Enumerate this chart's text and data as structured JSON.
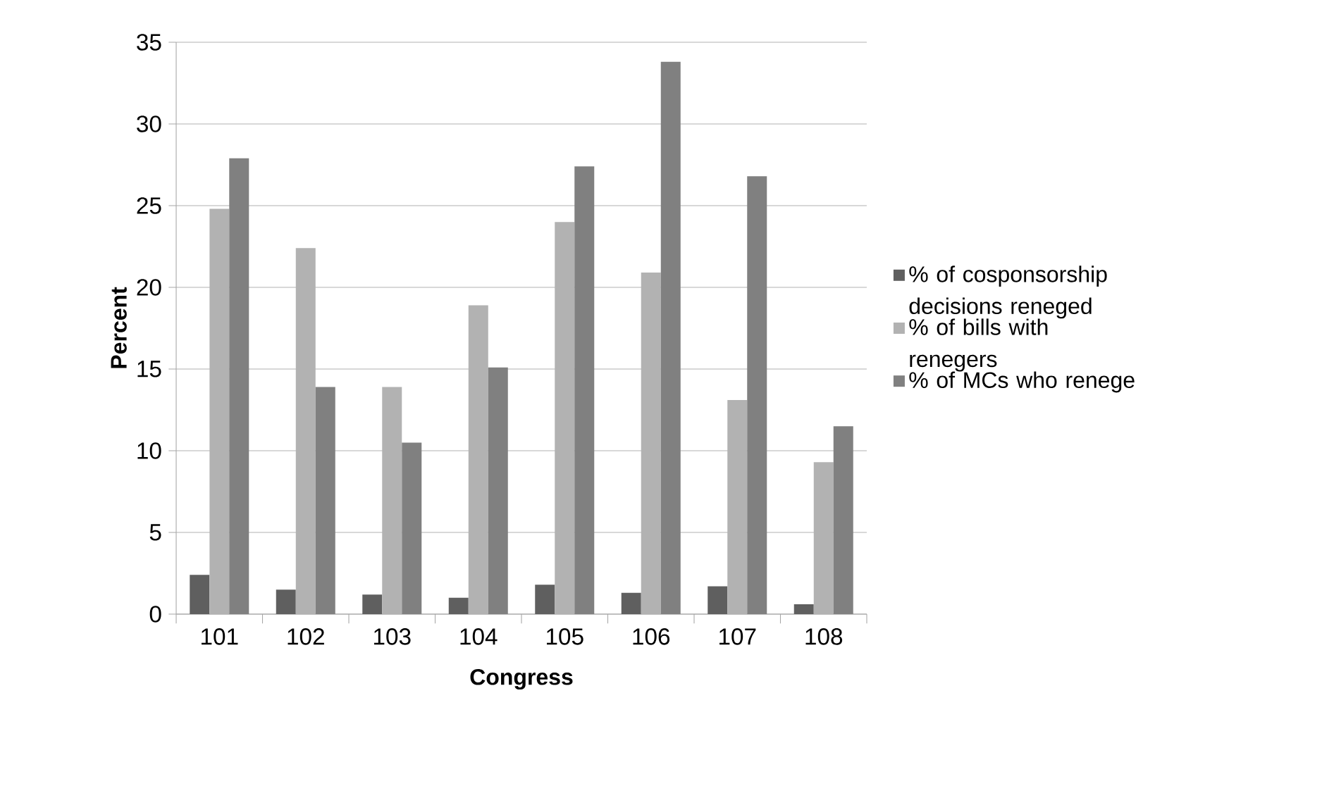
{
  "chart_data": {
    "type": "bar",
    "xlabel": "Congress",
    "ylabel": "Percent",
    "categories": [
      "101",
      "102",
      "103",
      "104",
      "105",
      "106",
      "107",
      "108"
    ],
    "series": [
      {
        "name": "% of cosponsorship decisions reneged",
        "color": "#5f5f5f",
        "values": [
          2.4,
          1.5,
          1.2,
          1.0,
          1.8,
          1.3,
          1.7,
          0.6
        ]
      },
      {
        "name": "% of bills with renegers",
        "color": "#b2b2b2",
        "values": [
          24.8,
          22.4,
          13.9,
          18.9,
          24.0,
          20.9,
          13.1,
          9.3
        ]
      },
      {
        "name": "% of MCs who renege",
        "color": "#808080",
        "values": [
          27.9,
          13.9,
          10.5,
          15.1,
          27.4,
          33.8,
          26.8,
          11.5
        ]
      }
    ],
    "ylim": [
      0,
      35
    ],
    "yticks": [
      0,
      5,
      10,
      15,
      20,
      25,
      30,
      35
    ],
    "grid": "y",
    "legend": "right"
  }
}
